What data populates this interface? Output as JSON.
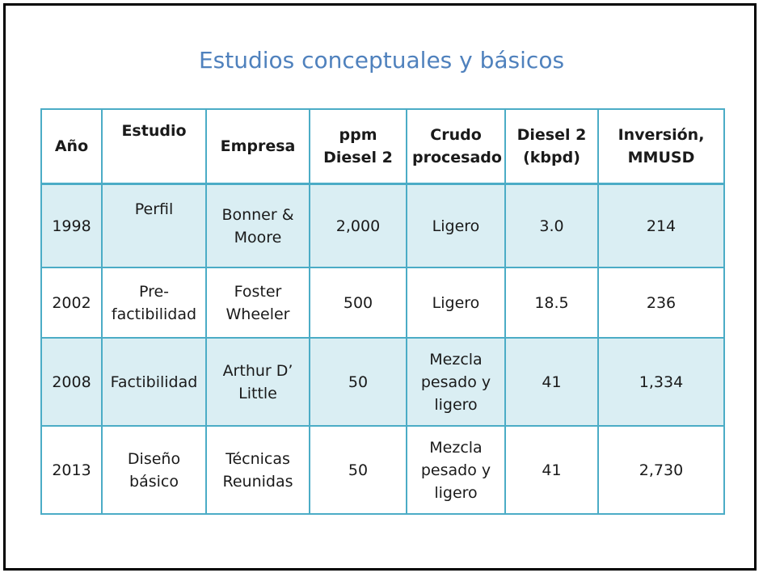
{
  "slide": {
    "title": "Estudios conceptuales y básicos"
  },
  "table": {
    "headers": [
      "Año",
      "Estudio",
      "Empresa",
      "ppm\nDiesel 2",
      "Crudo\nprocesado",
      "Diesel 2\n(kbpd)",
      "Inversión,\nMMUSD"
    ],
    "rows": [
      [
        "1998",
        "Perfil",
        "Bonner &\nMoore",
        "2,000",
        "Ligero",
        "3.0",
        "214"
      ],
      [
        "2002",
        "Pre-\nfactibilidad",
        "Foster\nWheeler",
        "500",
        "Ligero",
        "18.5",
        "236"
      ],
      [
        "2008",
        "Factibilidad",
        "Arthur D’\nLittle",
        "50",
        "Mezcla\npesado y\nligero",
        "41",
        "1,334"
      ],
      [
        "2013",
        "Diseño\nbásico",
        "Técnicas\nReunidas",
        "50",
        "Mezcla\npesado y\nligero",
        "41",
        "2,730"
      ]
    ]
  },
  "colors": {
    "title": "#4f81bd",
    "border": "#4bacc6",
    "band": "#daeef3"
  }
}
